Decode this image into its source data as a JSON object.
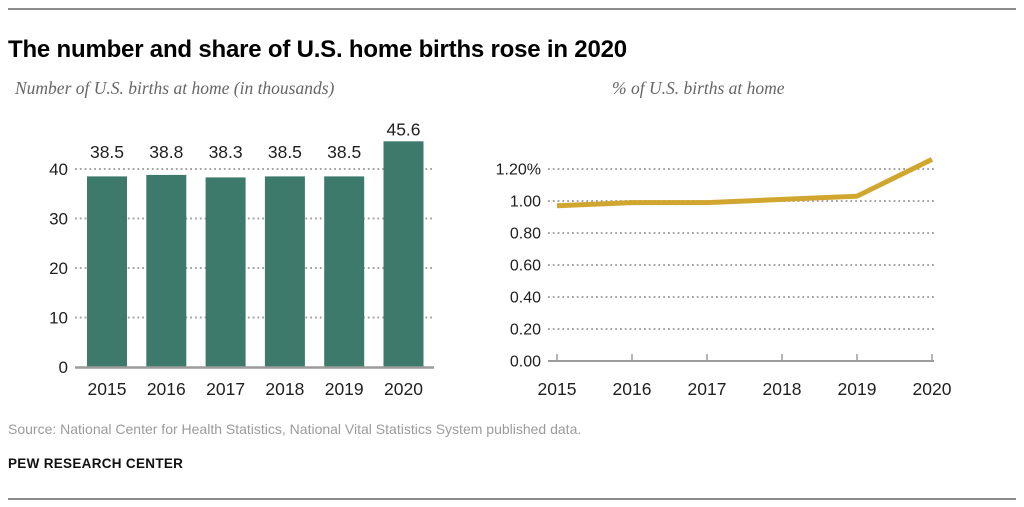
{
  "title": "The number and share of U.S. home births rose in 2020",
  "source": "Source: National Center for Health Statistics, National Vital Statistics System published data.",
  "brand": "PEW RESEARCH CENTER",
  "colors": {
    "bar": "#3d7a6b",
    "line": "#d1a62f",
    "grid": "#a3a3a3",
    "axis": "#9c9c9c",
    "rule": "#8c8c8c",
    "subtitle_text": "#666666",
    "source_text": "#9b9b9b",
    "tick_label": "#1f1f1f"
  },
  "chart_data": [
    {
      "type": "bar",
      "title": "Number of U.S. births at home (in thousands)",
      "categories": [
        "2015",
        "2016",
        "2017",
        "2018",
        "2019",
        "2020"
      ],
      "values": [
        38.5,
        38.8,
        38.3,
        38.5,
        38.5,
        45.6
      ],
      "data_labels": [
        "38.5",
        "38.8",
        "38.3",
        "38.5",
        "38.5",
        "45.6"
      ],
      "yticks": [
        0,
        10,
        20,
        30,
        40
      ],
      "ytick_labels": [
        "0",
        "10",
        "20",
        "30",
        "40"
      ],
      "ylim": [
        0,
        48
      ],
      "grid": "horizontal-dotted",
      "legend": "none"
    },
    {
      "type": "line",
      "title": "% of U.S. births at home",
      "x": [
        "2015",
        "2016",
        "2017",
        "2018",
        "2019",
        "2020"
      ],
      "values": [
        0.97,
        0.99,
        0.99,
        1.01,
        1.03,
        1.26
      ],
      "yticks": [
        0,
        0.2,
        0.4,
        0.6,
        0.8,
        1.0,
        1.2
      ],
      "ytick_labels": [
        "0.00",
        "0.20",
        "0.40",
        "0.60",
        "0.80",
        "1.00",
        "1.20%"
      ],
      "ylim": [
        0,
        1.3
      ],
      "grid": "horizontal-dotted",
      "legend": "none"
    }
  ]
}
